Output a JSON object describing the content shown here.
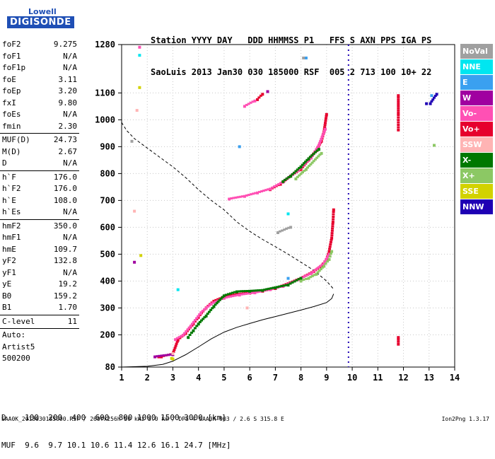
{
  "logo": {
    "line1": "Lowell",
    "line2": "DIGISONDE"
  },
  "header": {
    "row1": "Station YYYY DAY   DDD HHMMSS P1   FFS S AXN PPS IGA PS",
    "row2": "SaoLuis 2013 Jan30 030 185000 RSF  005 2 713 100 10+ 22"
  },
  "params_group1": [
    {
      "name": "foF2",
      "value": "9.275"
    },
    {
      "name": "foF1",
      "value": "N/A"
    },
    {
      "name": "foF1p",
      "value": "N/A"
    },
    {
      "name": "foE",
      "value": "3.11"
    },
    {
      "name": "foEp",
      "value": "3.20"
    },
    {
      "name": "fxI",
      "value": "9.80"
    },
    {
      "name": "foEs",
      "value": "N/A"
    },
    {
      "name": "fmin",
      "value": "2.30"
    }
  ],
  "params_group2": [
    {
      "name": "MUF(D)",
      "value": "24.73"
    },
    {
      "name": "M(D)",
      "value": "2.67"
    },
    {
      "name": "D",
      "value": "N/A"
    }
  ],
  "params_group3": [
    {
      "name": "h`F",
      "value": "176.0"
    },
    {
      "name": "h`F2",
      "value": "176.0"
    },
    {
      "name": "h`E",
      "value": "108.0"
    },
    {
      "name": "h`Es",
      "value": "N/A"
    }
  ],
  "params_group4": [
    {
      "name": "hmF2",
      "value": "350.0"
    },
    {
      "name": "hmF1",
      "value": "N/A"
    },
    {
      "name": "hmE",
      "value": "109.7"
    },
    {
      "name": "yF2",
      "value": "132.8"
    },
    {
      "name": "yF1",
      "value": "N/A"
    },
    {
      "name": "yE",
      "value": "19.2"
    },
    {
      "name": "B0",
      "value": "159.2"
    },
    {
      "name": "B1",
      "value": "1.70"
    }
  ],
  "params_group5": [
    {
      "name": "C-level",
      "value": "11"
    }
  ],
  "auto": {
    "line1": "Auto:",
    "line2": "Artist5",
    "line3": "500200"
  },
  "legend": [
    {
      "label": "NoVal",
      "color": "#a0a0a0"
    },
    {
      "label": "NNE",
      "color": "#00e6f0"
    },
    {
      "label": "E",
      "color": "#3aa0f0"
    },
    {
      "label": "W",
      "color": "#a000a0"
    },
    {
      "label": "Vo-",
      "color": "#ff50b4"
    },
    {
      "label": "Vo+",
      "color": "#e6002d"
    },
    {
      "label": "SSW",
      "color": "#ffb4b4"
    },
    {
      "label": "X-",
      "color": "#007800"
    },
    {
      "label": "X+",
      "color": "#8cc864"
    },
    {
      "label": "SSE",
      "color": "#d2d200"
    },
    {
      "label": "NNW",
      "color": "#1e00b4"
    }
  ],
  "footer": {
    "row1": "D    100  200  400  600  800 1000 1500 3000 [km]",
    "row2": "MUF  9.6  9.7 10.1 10.6 11.4 12.6 16.1 24.7 [MHz]",
    "source": "SAA0K_2013030185000.RSF / 260fx256h 50 kHz 5.0 km / DPS-4 SAA0K 903 / 2.6 S 315.8 E",
    "version": "Ion2Png 1.3.17"
  },
  "chart_data": {
    "type": "scatter",
    "title": "",
    "xlabel": "",
    "ylabel": "",
    "xlim": [
      1,
      14
    ],
    "ylim": [
      80,
      1280
    ],
    "xticks": [
      1,
      2,
      3,
      4,
      5,
      6,
      7,
      8,
      9,
      10,
      11,
      12,
      13,
      14
    ],
    "yticks": [
      80,
      200,
      300,
      400,
      500,
      600,
      700,
      800,
      900,
      1000,
      1100,
      1280
    ],
    "grid": true,
    "fxI_marker_freq": 9.8,
    "profile_solid": [
      [
        1,
        80
      ],
      [
        2,
        83
      ],
      [
        2.6,
        90
      ],
      [
        3,
        102
      ],
      [
        3.5,
        126
      ],
      [
        4,
        155
      ],
      [
        4.5,
        185
      ],
      [
        5,
        210
      ],
      [
        5.5,
        228
      ],
      [
        6,
        242
      ],
      [
        6.5,
        256
      ],
      [
        7,
        268
      ],
      [
        7.5,
        280
      ],
      [
        8,
        292
      ],
      [
        8.5,
        305
      ],
      [
        9,
        320
      ],
      [
        9.2,
        335
      ],
      [
        9.275,
        352
      ]
    ],
    "profile_dashed": [
      [
        1,
        990
      ],
      [
        1.2,
        960
      ],
      [
        1.5,
        930
      ],
      [
        2,
        895
      ],
      [
        2.5,
        860
      ],
      [
        3,
        825
      ],
      [
        3.5,
        785
      ],
      [
        4,
        740
      ],
      [
        4.5,
        700
      ],
      [
        5,
        665
      ],
      [
        5.5,
        620
      ],
      [
        6,
        585
      ],
      [
        6.5,
        555
      ],
      [
        7,
        528
      ],
      [
        7.5,
        500
      ],
      [
        8,
        470
      ],
      [
        8.5,
        440
      ],
      [
        9,
        400
      ],
      [
        9.275,
        370
      ]
    ],
    "series": [
      {
        "name": "Vo+",
        "points": [
          [
            2.45,
            118
          ],
          [
            2.55,
            118
          ],
          [
            3.0,
            128
          ],
          [
            3.2,
            180
          ],
          [
            3.5,
            205
          ],
          [
            3.8,
            240
          ],
          [
            4.0,
            265
          ],
          [
            4.3,
            300
          ],
          [
            4.6,
            325
          ],
          [
            5.0,
            340
          ],
          [
            5.5,
            350
          ],
          [
            6.0,
            355
          ],
          [
            6.5,
            362
          ],
          [
            7.0,
            372
          ],
          [
            7.5,
            390
          ],
          [
            8.0,
            410
          ],
          [
            8.5,
            435
          ],
          [
            8.8,
            455
          ],
          [
            9.0,
            480
          ],
          [
            9.1,
            510
          ],
          [
            9.2,
            560
          ],
          [
            9.25,
            620
          ],
          [
            9.275,
            665
          ],
          [
            6.8,
            740
          ],
          [
            7.2,
            760
          ],
          [
            7.6,
            790
          ],
          [
            8.0,
            815
          ],
          [
            8.3,
            850
          ],
          [
            8.6,
            885
          ],
          [
            8.8,
            920
          ],
          [
            8.9,
            955
          ],
          [
            9.0,
            1020
          ],
          [
            6.5,
            1095
          ],
          [
            6.3,
            1075
          ]
        ]
      },
      {
        "name": "Vo-",
        "points": [
          [
            3.1,
            182
          ],
          [
            3.4,
            198
          ],
          [
            3.7,
            232
          ],
          [
            4.1,
            282
          ],
          [
            4.5,
            315
          ],
          [
            5.0,
            336
          ],
          [
            5.6,
            348
          ],
          [
            6.2,
            356
          ],
          [
            6.8,
            368
          ],
          [
            7.3,
            380
          ],
          [
            7.9,
            405
          ],
          [
            8.4,
            428
          ],
          [
            8.9,
            465
          ],
          [
            9.1,
            500
          ],
          [
            5.2,
            705
          ],
          [
            5.8,
            715
          ],
          [
            6.3,
            728
          ],
          [
            6.8,
            742
          ],
          [
            7.3,
            768
          ],
          [
            7.9,
            812
          ],
          [
            8.4,
            858
          ],
          [
            8.7,
            905
          ],
          [
            8.95,
            965
          ],
          [
            5.8,
            1050
          ],
          [
            6.2,
            1070
          ],
          [
            1.7,
            1270
          ]
        ]
      },
      {
        "name": "X-",
        "points": [
          [
            3.6,
            190
          ],
          [
            3.8,
            215
          ],
          [
            4.0,
            240
          ],
          [
            4.3,
            270
          ],
          [
            4.6,
            305
          ],
          [
            5.0,
            345
          ],
          [
            5.5,
            360
          ],
          [
            6.0,
            362
          ],
          [
            6.5,
            365
          ],
          [
            7.0,
            375
          ],
          [
            7.5,
            385
          ],
          [
            8.0,
            410
          ],
          [
            7.3,
            770
          ],
          [
            7.6,
            790
          ],
          [
            8.0,
            825
          ],
          [
            8.3,
            855
          ],
          [
            8.7,
            890
          ]
        ]
      },
      {
        "name": "X+",
        "points": [
          [
            8.0,
            400
          ],
          [
            8.3,
            410
          ],
          [
            8.6,
            425
          ],
          [
            8.9,
            455
          ],
          [
            9.1,
            480
          ],
          [
            9.2,
            510
          ],
          [
            7.8,
            780
          ],
          [
            8.2,
            815
          ],
          [
            8.8,
            875
          ],
          [
            13.2,
            905
          ]
        ]
      },
      {
        "name": "W",
        "points": [
          [
            2.3,
            118
          ],
          [
            3.0,
            126
          ],
          [
            6.7,
            1105
          ],
          [
            1.5,
            470
          ]
        ]
      },
      {
        "name": "SSW",
        "points": [
          [
            3.0,
            130
          ],
          [
            1.6,
            1035
          ],
          [
            1.5,
            660
          ],
          [
            5.9,
            300
          ]
        ]
      },
      {
        "name": "SSE",
        "points": [
          [
            3.0,
            110
          ],
          [
            2.95,
            112
          ],
          [
            1.75,
            495
          ],
          [
            1.7,
            1120
          ]
        ]
      },
      {
        "name": "E",
        "points": [
          [
            5.6,
            900
          ],
          [
            7.5,
            410
          ],
          [
            13.1,
            1090
          ],
          [
            8.2,
            1230
          ]
        ]
      },
      {
        "name": "NNE",
        "points": [
          [
            1.7,
            1240
          ],
          [
            3.2,
            368
          ],
          [
            7.5,
            650
          ]
        ]
      },
      {
        "name": "NoVal",
        "points": [
          [
            8.1,
            1230
          ],
          [
            7.6,
            600
          ],
          [
            7.1,
            580
          ],
          [
            1.4,
            920
          ]
        ]
      },
      {
        "name": "NNW",
        "points": [
          [
            13.3,
            1095
          ],
          [
            13.05,
            1060
          ],
          [
            12.9,
            1060
          ]
        ]
      },
      {
        "name": "Vo+",
        "points": [
          [
            11.8,
            1090
          ],
          [
            11.8,
            1025
          ],
          [
            11.8,
            962
          ],
          [
            11.8,
            190
          ],
          [
            11.8,
            165
          ]
        ]
      }
    ]
  }
}
